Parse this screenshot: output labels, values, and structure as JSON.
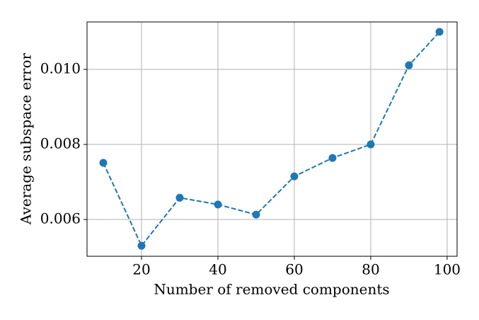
{
  "chart_data": {
    "type": "line",
    "xlabel": "Number of removed components",
    "ylabel": "Average subspace error",
    "x": [
      10,
      20,
      30,
      40,
      50,
      60,
      70,
      80,
      90,
      98
    ],
    "series": [
      {
        "name": "Average subspace error",
        "color": "#1f77b4",
        "values": [
          0.00751,
          0.0053,
          0.00658,
          0.0064,
          0.00613,
          0.00715,
          0.00764,
          0.008,
          0.01011,
          0.011
        ]
      }
    ],
    "xlim": [
      5.74,
      102.6
    ],
    "ylim": [
      0.00502,
      0.011264
    ],
    "xticks": [
      20,
      40,
      60,
      80,
      100
    ],
    "yticks": [
      0.006,
      0.008,
      {
        "value": 0.01,
        "label": "0.010"
      }
    ],
    "grid": true,
    "linestyle": "dashed",
    "marker": "circle"
  }
}
